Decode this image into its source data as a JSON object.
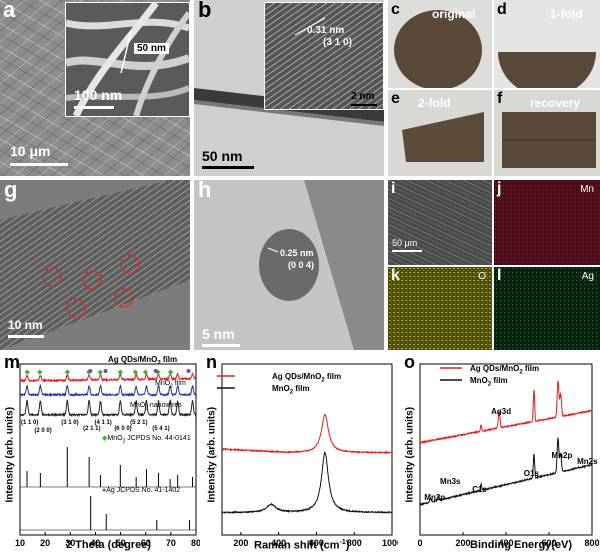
{
  "panels": {
    "a": {
      "label": "a",
      "inset_scale": "50 nm",
      "inset_bar": "100 nm",
      "scale": "10 μm"
    },
    "b": {
      "label": "b",
      "d_spacing": "0.31 nm",
      "plane": "(3 1 0)",
      "inset_scale": "2 nm",
      "scale": "50 nm"
    },
    "c": {
      "label": "c",
      "title": "original"
    },
    "d": {
      "label": "d",
      "title": "1-fold"
    },
    "e": {
      "label": "e",
      "title": "2-fold"
    },
    "f": {
      "label": "f",
      "title": "recovery"
    },
    "g": {
      "label": "g",
      "scale": "10 nm"
    },
    "h": {
      "label": "h",
      "d_spacing": "0.25 nm",
      "plane": "(0 0 4)",
      "scale": "5 nm"
    },
    "i": {
      "label": "i",
      "scale": "50 μm"
    },
    "j": {
      "label": "j",
      "element": "Mn"
    },
    "k": {
      "label": "k",
      "element": "O"
    },
    "l": {
      "label": "l",
      "element": "Ag"
    },
    "m": {
      "label": "m"
    },
    "n": {
      "label": "n"
    },
    "o": {
      "label": "o"
    }
  },
  "chart_data": [
    {
      "type": "line",
      "panel": "m",
      "xlabel": "2 Theta (degree)",
      "ylabel": "Intensity (arb. units)",
      "xlim": [
        10,
        80
      ],
      "xticks": [
        10,
        20,
        30,
        40,
        50,
        60,
        70,
        80
      ],
      "series": [
        {
          "name": "Ag QDs/MnO2 film",
          "color": "#e02020"
        },
        {
          "name": "MnO2 film",
          "color": "#2030a0"
        },
        {
          "name": "MnO2 nanowires",
          "color": "#202020"
        }
      ],
      "peak_labels": [
        "(1 1 0)",
        "(2 0 0)",
        "(3 1 0)",
        "(2 1 1)",
        "(4 1 1)",
        "(6 0 0)",
        "(5 2 1)",
        "(5 4 1)"
      ],
      "references": [
        {
          "name": "MnO2 : JCPDS No. 44-0141",
          "marker_color": "#40b040",
          "peaks": [
            12.8,
            18.1,
            28.8,
            37.5,
            42.0,
            49.9,
            56.2,
            60.3,
            65.1,
            69.7,
            72.7,
            78.6
          ]
        },
        {
          "name": "Ag : JCPDS No. 41-1402",
          "marker_color": "#8040c0",
          "peaks": [
            38.1,
            44.3,
            64.4,
            77.4
          ]
        }
      ],
      "texts": {
        "s1": "Ag QDs/MnO",
        "s1_sub": "2",
        "s1_end": " film",
        "s2": "MnO",
        "s2_sub": "2",
        "s2_end": " film",
        "s3": "MnO",
        "s3_sub": "2",
        "s3_end": " nanowires",
        "ref1": "MnO",
        "ref1_sub": "2",
        "ref1_end": "  JCPDS No. 44-0141",
        "ref2": "Ag",
        "ref2_end": "  JCPDS No. 41-1402"
      }
    },
    {
      "type": "line",
      "panel": "n",
      "xlabel": "Raman shift (cm",
      "xlabel_sup": "-1",
      "xlabel_end": ")",
      "ylabel": "Intensity (arb. units)",
      "xlim": [
        100,
        1000
      ],
      "xticks": [
        200,
        400,
        600,
        800,
        1000
      ],
      "series": [
        {
          "name": "Ag QDs/MnO2 film",
          "color": "#e02020",
          "peak": 645
        },
        {
          "name": "MnO2 film",
          "color": "#101010",
          "peak": 645
        }
      ],
      "legend": {
        "l1": "Ag QDs/MnO",
        "l1_sub": "2",
        "l1_end": " film",
        "l2": "MnO",
        "l2_sub": "2",
        "l2_end": " film"
      }
    },
    {
      "type": "line",
      "panel": "o",
      "xlabel": "Binding Energy(eV)",
      "ylabel": "Intensity (arb. units)",
      "xlim": [
        0,
        800
      ],
      "xticks": [
        0,
        200,
        400,
        600,
        800
      ],
      "series": [
        {
          "name": "Ag QDs/MnO2 film",
          "color": "#e02020"
        },
        {
          "name": "MnO2 film",
          "color": "#101010"
        }
      ],
      "annotations": [
        "Ag3d",
        "Mn3s",
        "Mn3p",
        "C1s",
        "O1s",
        "Mn2p",
        "Mn2s"
      ],
      "legend": {
        "l1": "Ag QDs/MnO",
        "l1_sub": "2",
        "l1_end": " film",
        "l2": "MnO",
        "l2_sub": "2",
        "l2_end": " film"
      }
    }
  ]
}
